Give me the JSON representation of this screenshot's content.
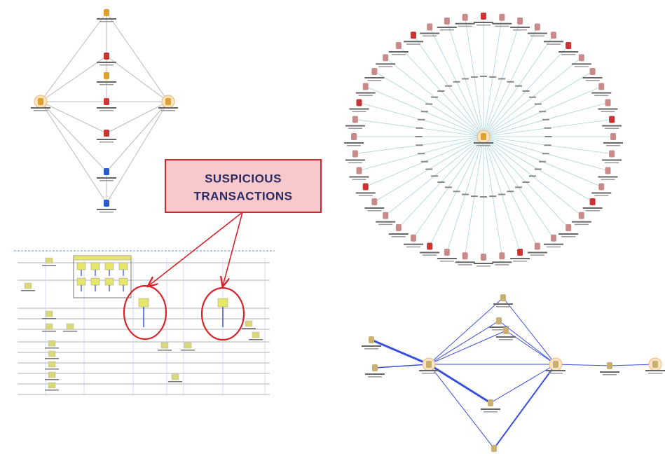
{
  "callout": {
    "lines": [
      "SUSPICIOUS",
      "TRANSACTIONS"
    ]
  }
}
